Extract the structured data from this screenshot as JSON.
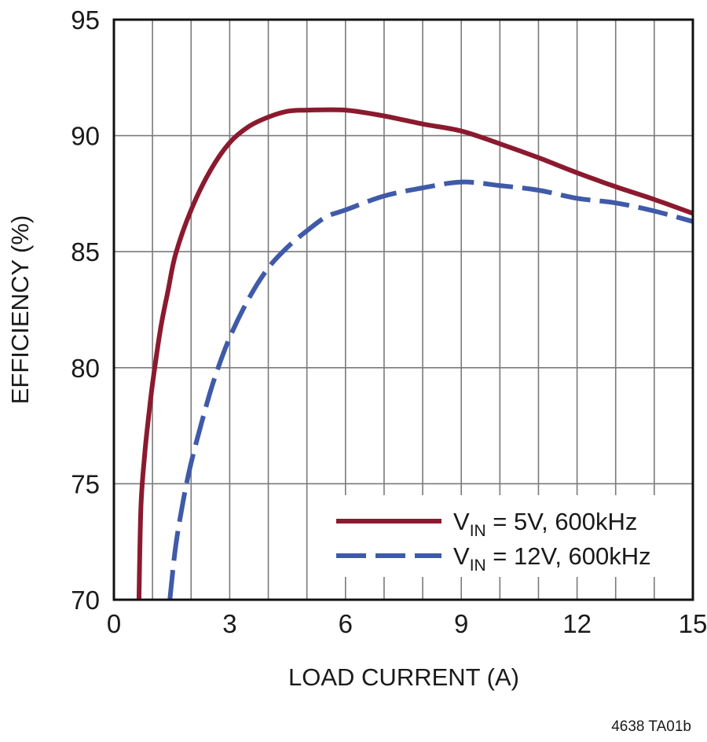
{
  "chart_data": {
    "type": "line",
    "xlabel": "LOAD CURRENT (A)",
    "ylabel": "EFFICIENCY (%)",
    "xlim": [
      0,
      15
    ],
    "ylim": [
      70,
      95
    ],
    "x_ticks": [
      "0",
      "3",
      "6",
      "9",
      "12",
      "15"
    ],
    "y_ticks": [
      "70",
      "75",
      "80",
      "85",
      "90",
      "95"
    ],
    "x_minor_step": 1,
    "y_major_step": 5,
    "grid": true,
    "legend_position": "bottom-right",
    "figure_id": "4638 TA01b",
    "series": [
      {
        "legend_main": "V",
        "legend_sub": "IN",
        "legend_rest": " = 5V, 600kHz",
        "color": "#8b1a2f",
        "dash": "solid",
        "x": [
          0.65,
          0.7,
          0.8,
          0.9,
          1.0,
          1.2,
          1.4,
          1.6,
          2.0,
          2.5,
          3.0,
          3.5,
          4.0,
          4.5,
          5.0,
          6.0,
          7.0,
          8.0,
          9.0,
          10.0,
          11.0,
          12.0,
          13.0,
          14.0,
          15.0
        ],
        "y": [
          70.0,
          74.0,
          76.3,
          77.9,
          79.3,
          81.6,
          83.3,
          84.9,
          86.8,
          88.5,
          89.7,
          90.4,
          90.8,
          91.05,
          91.1,
          91.1,
          90.85,
          90.5,
          90.2,
          89.65,
          89.05,
          88.4,
          87.8,
          87.25,
          86.65
        ]
      },
      {
        "legend_main": "V",
        "legend_sub": "IN",
        "legend_rest": " = 12V, 600kHz",
        "color": "#3f5aa8",
        "dash": "long-dash",
        "x": [
          1.45,
          1.6,
          1.8,
          2.0,
          2.3,
          2.6,
          3.0,
          3.5,
          4.0,
          4.5,
          5.0,
          5.5,
          6.0,
          7.0,
          8.0,
          9.0,
          10.0,
          11.0,
          12.0,
          13.0,
          14.0,
          15.0
        ],
        "y": [
          70.0,
          72.3,
          74.3,
          75.9,
          77.8,
          79.5,
          81.3,
          83.0,
          84.3,
          85.2,
          85.9,
          86.5,
          86.8,
          87.4,
          87.75,
          88.0,
          87.85,
          87.65,
          87.3,
          87.1,
          86.75,
          86.3
        ]
      }
    ]
  }
}
